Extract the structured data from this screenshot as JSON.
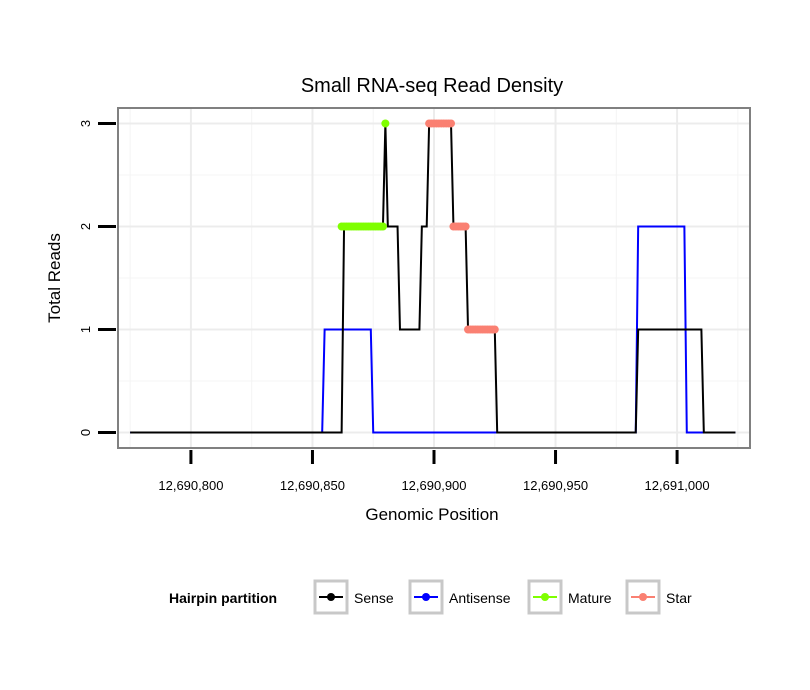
{
  "chart_data": {
    "type": "line",
    "title": "Small RNA-seq Read Density",
    "xlabel": "Genomic Position",
    "ylabel": "Total Reads",
    "xlim": [
      12690770,
      12691030
    ],
    "ylim": [
      -0.15,
      3.15
    ],
    "x_ticks": [
      12690800,
      12690850,
      12690900,
      12690950,
      12691000
    ],
    "x_tick_labels": [
      "12,690,800",
      "12,690,850",
      "12,690,900",
      "12,690,950",
      "12,691,000"
    ],
    "y_ticks": [
      0,
      1,
      2,
      3
    ],
    "y_tick_labels": [
      "0",
      "1",
      "2",
      "3"
    ],
    "grid": true,
    "legend": {
      "title": "Hairpin partition",
      "position": "bottom",
      "entries": [
        {
          "label": "Sense",
          "color": "#000000"
        },
        {
          "label": "Antisense",
          "color": "#0000ff"
        },
        {
          "label": "Mature",
          "color": "#7fff00"
        },
        {
          "label": "Star",
          "color": "#fa8072"
        }
      ]
    },
    "series": [
      {
        "name": "Sense",
        "color": "#000000",
        "style": "line",
        "x": [
          12690775,
          12690862,
          12690863,
          12690879,
          12690880,
          12690881,
          12690885,
          12690886,
          12690894,
          12690895,
          12690897,
          12690898,
          12690907,
          12690908,
          12690913,
          12690914,
          12690925,
          12690926,
          12690983,
          12690984,
          12691010,
          12691011,
          12691024
        ],
        "y": [
          0,
          0,
          2,
          2,
          3,
          2,
          2,
          1,
          1,
          2,
          2,
          3,
          3,
          2,
          2,
          1,
          1,
          0,
          0,
          1,
          1,
          0,
          0
        ]
      },
      {
        "name": "Antisense",
        "color": "#0000ff",
        "style": "line",
        "x": [
          12690775,
          12690854,
          12690855,
          12690874,
          12690875,
          12690983,
          12690984,
          12691003,
          12691004,
          12691024
        ],
        "y": [
          0,
          0,
          1,
          1,
          0,
          0,
          2,
          2,
          0,
          0
        ]
      },
      {
        "name": "Mature",
        "color": "#7fff00",
        "style": "points",
        "x": [
          12690862,
          12690863,
          12690864,
          12690865,
          12690866,
          12690867,
          12690868,
          12690869,
          12690870,
          12690871,
          12690872,
          12690873,
          12690874,
          12690875,
          12690876,
          12690877,
          12690878,
          12690879,
          12690880
        ],
        "y": [
          2,
          2,
          2,
          2,
          2,
          2,
          2,
          2,
          2,
          2,
          2,
          2,
          2,
          2,
          2,
          2,
          2,
          2,
          3
        ]
      },
      {
        "name": "Star",
        "color": "#fa8072",
        "style": "points",
        "x": [
          12690898,
          12690899,
          12690900,
          12690901,
          12690902,
          12690903,
          12690904,
          12690905,
          12690906,
          12690907,
          12690908,
          12690909,
          12690910,
          12690911,
          12690912,
          12690913,
          12690914,
          12690915,
          12690916,
          12690917,
          12690918,
          12690919,
          12690920,
          12690921,
          12690922,
          12690923,
          12690924,
          12690925
        ],
        "y": [
          3,
          3,
          3,
          3,
          3,
          3,
          3,
          3,
          3,
          3,
          2,
          2,
          2,
          2,
          2,
          2,
          1,
          1,
          1,
          1,
          1,
          1,
          1,
          1,
          1,
          1,
          1,
          1
        ]
      }
    ]
  }
}
